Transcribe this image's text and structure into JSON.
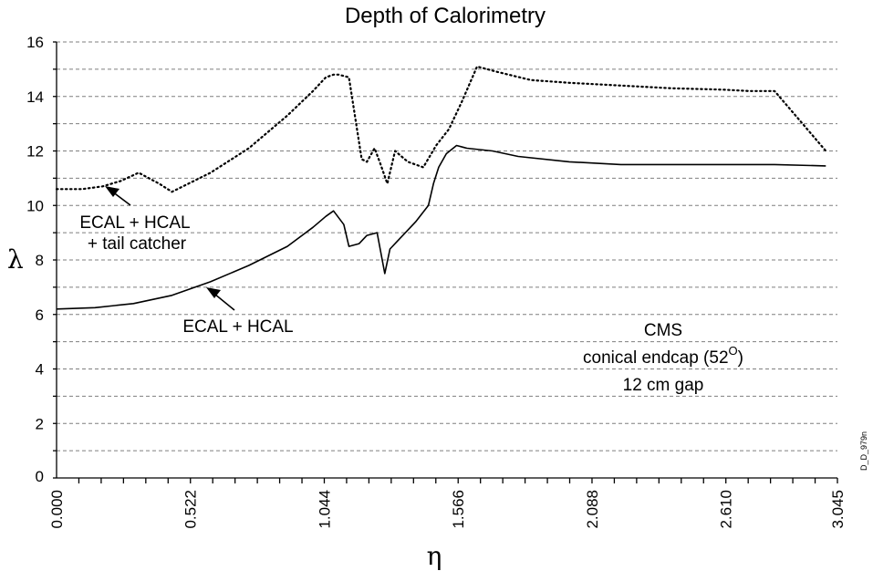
{
  "chart_data": {
    "type": "line",
    "title": "Depth of Calorimetry",
    "xlabel": "η",
    "ylabel": "λ",
    "xlim": [
      0,
      3.045
    ],
    "ylim": [
      0,
      16
    ],
    "x_tick_labels": [
      "0.000",
      "0.522",
      "1.044",
      "1.566",
      "2.088",
      "2.610",
      "3.045"
    ],
    "y_tick_labels": [
      "0",
      "2",
      "4",
      "6",
      "8",
      "10",
      "12",
      "14",
      "16"
    ],
    "grid": true,
    "series": [
      {
        "name": "ECAL + HCAL + tail catcher",
        "style": "dotted",
        "x": [
          0.0,
          0.1,
          0.18,
          0.25,
          0.32,
          0.4,
          0.45,
          0.6,
          0.75,
          0.9,
          1.0,
          1.05,
          1.08,
          1.1,
          1.14,
          1.16,
          1.19,
          1.21,
          1.24,
          1.26,
          1.29,
          1.32,
          1.37,
          1.43,
          1.48,
          1.53,
          1.58,
          1.64,
          1.72,
          1.85,
          2.0,
          2.2,
          2.4,
          2.6,
          2.7,
          2.8,
          2.9,
          3.0
        ],
        "values": [
          10.6,
          10.6,
          10.7,
          10.9,
          11.2,
          10.8,
          10.5,
          11.2,
          12.1,
          13.3,
          14.2,
          14.7,
          14.8,
          14.8,
          14.7,
          13.5,
          11.7,
          11.6,
          12.1,
          11.6,
          10.8,
          12.0,
          11.6,
          11.4,
          12.2,
          12.8,
          13.8,
          15.1,
          14.9,
          14.6,
          14.5,
          14.4,
          14.3,
          14.25,
          14.2,
          14.2,
          13.1,
          12.0
        ]
      },
      {
        "name": "ECAL + HCAL",
        "style": "solid",
        "x": [
          0.0,
          0.15,
          0.3,
          0.45,
          0.6,
          0.75,
          0.9,
          1.0,
          1.05,
          1.08,
          1.12,
          1.14,
          1.18,
          1.21,
          1.25,
          1.28,
          1.3,
          1.33,
          1.4,
          1.45,
          1.47,
          1.49,
          1.52,
          1.56,
          1.6,
          1.7,
          1.8,
          2.0,
          2.2,
          2.4,
          2.6,
          2.8,
          3.0
        ],
        "values": [
          6.2,
          6.25,
          6.4,
          6.7,
          7.2,
          7.8,
          8.5,
          9.2,
          9.6,
          9.8,
          9.3,
          8.5,
          8.6,
          8.9,
          9.0,
          7.5,
          8.4,
          8.7,
          9.4,
          10.0,
          10.8,
          11.4,
          11.9,
          12.2,
          12.1,
          12.0,
          11.8,
          11.6,
          11.5,
          11.5,
          11.5,
          11.5,
          11.45
        ]
      }
    ],
    "annotations": {
      "upper_line": [
        "ECAL + HCAL",
        "+ tail catcher"
      ],
      "lower_line": "ECAL + HCAL",
      "detector": {
        "line1": "CMS",
        "line2_prefix": "conical endcap (52",
        "line2_degree": "O",
        "line2_suffix": ")",
        "line3": "12 cm gap"
      },
      "figure_id": "D_D_979n"
    }
  }
}
